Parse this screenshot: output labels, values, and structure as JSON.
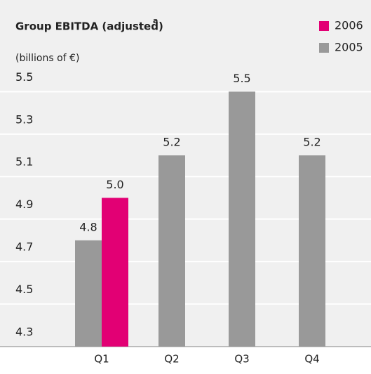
{
  "chart_data": {
    "type": "bar",
    "title": "Group EBITDA (adjusted)",
    "title_note": "a",
    "subtitle": "(billions of €)",
    "categories": [
      "Q1",
      "Q2",
      "Q3",
      "Q4"
    ],
    "series": [
      {
        "name": "2005",
        "color": "#999999",
        "values": [
          4.8,
          5.2,
          5.5,
          5.2
        ]
      },
      {
        "name": "2006",
        "color": "#e20074",
        "values": [
          5.0,
          null,
          null,
          null
        ],
        "value_labels": [
          "5.0",
          null,
          null,
          null
        ]
      }
    ],
    "legend_order": [
      1,
      0
    ],
    "ylim": [
      4.3,
      5.65
    ],
    "yticks": [
      4.3,
      4.5,
      4.7,
      4.9,
      5.1,
      5.3,
      5.5
    ],
    "grid": true
  }
}
